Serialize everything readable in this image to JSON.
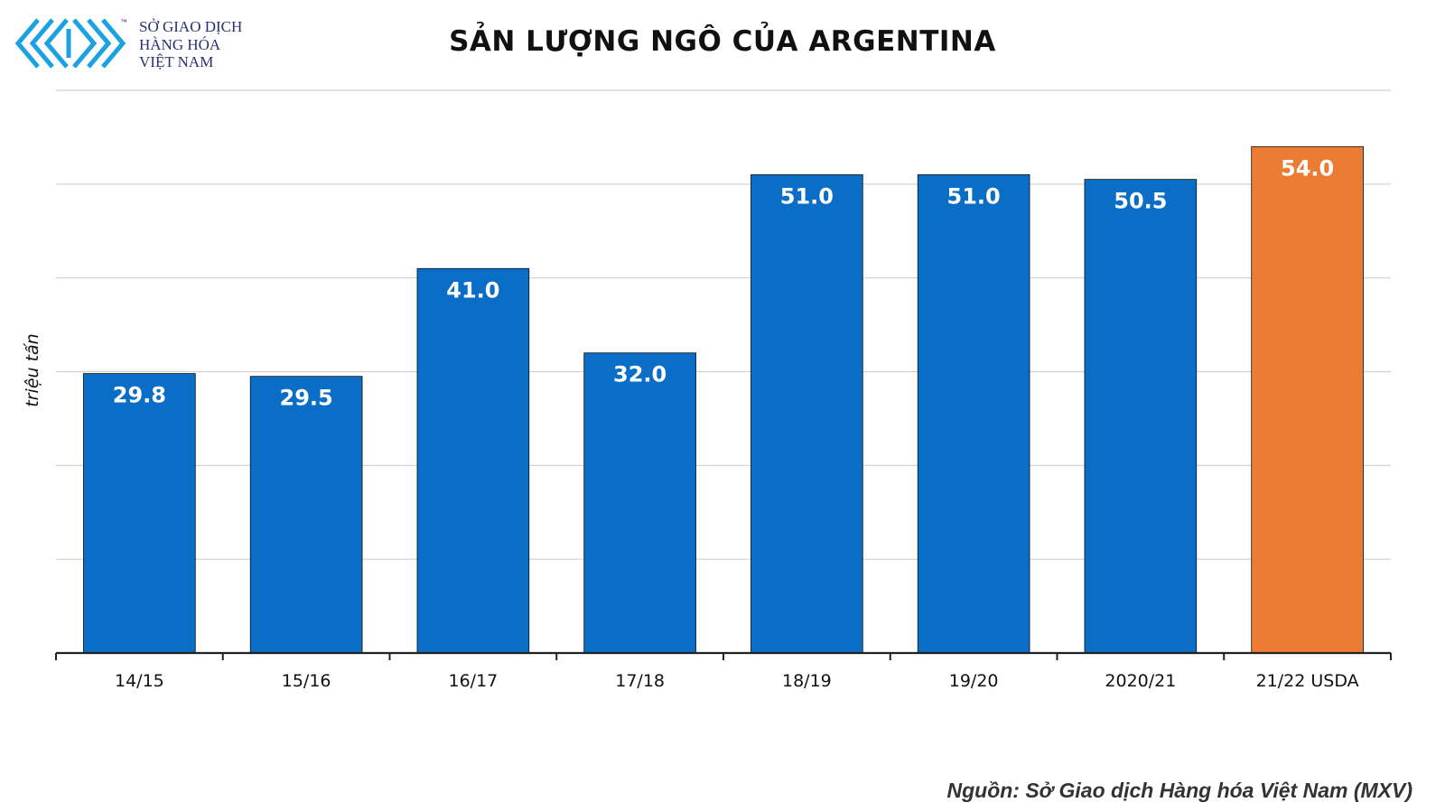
{
  "logo": {
    "line1": "SỞ GIAO DỊCH",
    "line2": "HÀNG HÓA",
    "line3": "VIỆT NAM",
    "tm": "™",
    "icon": "chevron-arrows-logo-icon",
    "color": "#1aa3e0"
  },
  "source": "Nguồn: Sở Giao dịch Hàng hóa Việt Nam (MXV)",
  "colors": {
    "bar": "#0a6ec6",
    "highlight": "#ec7b33",
    "grid": "#d0d0d0",
    "axis": "#222222",
    "label": "#ffffff"
  },
  "chart_data": {
    "type": "bar",
    "title": "SẢN LƯỢNG NGÔ CỦA ARGENTINA",
    "ylabel": "triệu tấn",
    "xlabel": "",
    "categories": [
      "14/15",
      "15/16",
      "16/17",
      "17/18",
      "18/19",
      "19/20",
      "2020/21",
      "21/22 USDA"
    ],
    "values": [
      29.8,
      29.5,
      41.0,
      32.0,
      51.0,
      51.0,
      50.5,
      54.0
    ],
    "value_labels": [
      "29.8",
      "29.5",
      "41.0",
      "32.0",
      "51.0",
      "51.0",
      "50.5",
      "54.0"
    ],
    "highlight_index": 7,
    "ylim": [
      0,
      60
    ],
    "ytick_step": 10,
    "grid": true,
    "y_tick_labels_visible": false,
    "legend": "none"
  }
}
